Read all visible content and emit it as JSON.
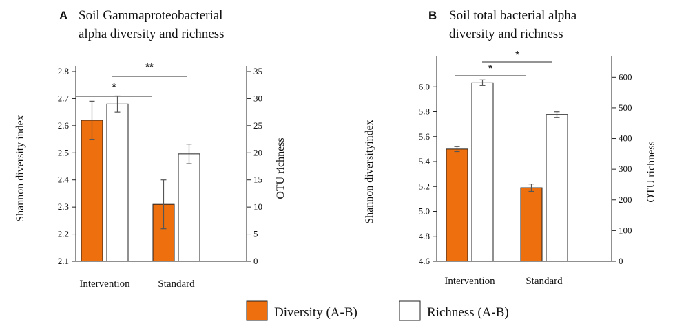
{
  "colors": {
    "diversity": "#EE6F0E",
    "richness": "#FFFFFF",
    "axis": "#222222",
    "errorbar": "#555555"
  },
  "chart_data": [
    {
      "type": "bar",
      "panel_label": "A",
      "title_lines": [
        "Soil Gammaproteobacterial",
        "alpha diversity and  richness"
      ],
      "categories": [
        "Intervention",
        "Standard"
      ],
      "ylabel": "Shannon diversity index",
      "y2label": "OTU richness",
      "ylim": [
        2.1,
        2.8
      ],
      "yticks": [
        "2.1",
        "2.2",
        "2.3",
        "2.4",
        "2.5",
        "2.6",
        "2.7",
        "2.8"
      ],
      "y2lim": [
        0,
        35
      ],
      "y2ticks": [
        "0",
        "5",
        "10",
        "15",
        "20",
        "25",
        "30",
        "35"
      ],
      "series": [
        {
          "name": "Diversity (A-B)",
          "axis": "left",
          "values": [
            2.62,
            2.31
          ],
          "errors": [
            0.07,
            0.09
          ]
        },
        {
          "name": "Richness (A-B)",
          "axis": "right",
          "values": [
            29.0,
            19.8
          ],
          "errors": [
            1.5,
            1.8
          ]
        }
      ],
      "significance": [
        {
          "label": "*",
          "from_category": 0,
          "to_category": 1,
          "level": 2.73
        },
        {
          "label": "**",
          "from_category": 0,
          "to_category": 1,
          "level": 2.78
        }
      ]
    },
    {
      "type": "bar",
      "panel_label": "B",
      "title_lines": [
        "Soil total bacterial alpha",
        "diversity and richness"
      ],
      "categories": [
        "Intervention",
        "Standard"
      ],
      "ylabel": "Shannon diversityindex",
      "y2label": "OTU richness",
      "ylim": [
        4.6,
        6.2
      ],
      "yticks": [
        "4.6",
        "4.8",
        "5.0",
        "5.2",
        "5.4",
        "5.6",
        "5.8",
        "6.0"
      ],
      "y2lim": [
        0,
        650
      ],
      "y2ticks": [
        "0",
        "100",
        "200",
        "300",
        "400",
        "500",
        "600"
      ],
      "series": [
        {
          "name": "Diversity (A-B)",
          "axis": "left",
          "values": [
            5.5,
            5.19
          ],
          "errors": [
            0.02,
            0.03
          ]
        },
        {
          "name": "Richness (A-B)",
          "axis": "right",
          "values": [
            582,
            478
          ],
          "errors": [
            9,
            9
          ]
        }
      ],
      "significance": [
        {
          "label": "*",
          "from_category": 0,
          "to_category": 1,
          "level": 6.03
        },
        {
          "label": "*",
          "from_category": 0,
          "to_category": 1,
          "level": 6.13
        }
      ]
    }
  ],
  "legend": {
    "position": "bottom-center",
    "items": [
      {
        "label": "Diversity (A-B)",
        "series": "diversity"
      },
      {
        "label": "Richness (A-B)",
        "series": "richness"
      }
    ]
  }
}
